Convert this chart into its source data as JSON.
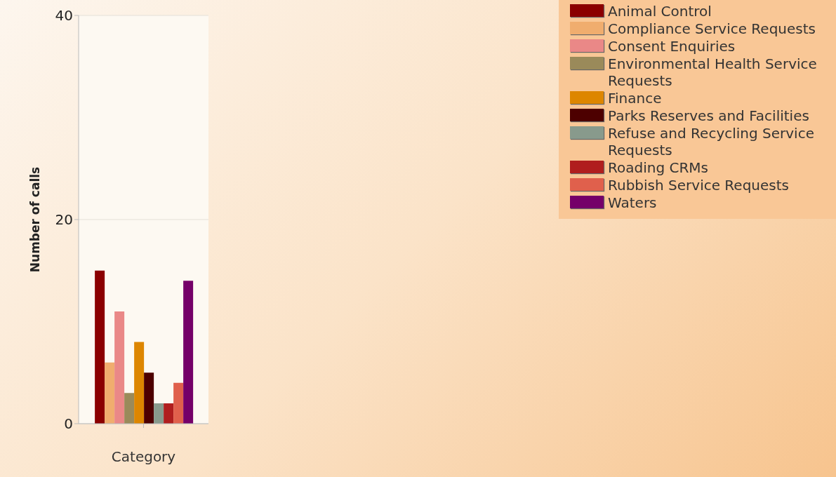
{
  "chart_data": {
    "type": "bar",
    "xlabel": "Category",
    "ylabel": "Number of calls",
    "categories": [
      null
    ],
    "series": [
      {
        "name": "Animal Control",
        "color": "#8b0000",
        "values": [
          15
        ]
      },
      {
        "name": "Compliance Service Requests",
        "color": "#f0ad6e",
        "values": [
          6
        ]
      },
      {
        "name": "Consent Enquiries",
        "color": "#ea8887",
        "values": [
          11
        ]
      },
      {
        "name": "Environmental Health Service Requests",
        "color": "#9a8a5a",
        "values": [
          3
        ]
      },
      {
        "name": "Finance",
        "color": "#dd8600",
        "values": [
          8
        ]
      },
      {
        "name": "Parks Reserves and Facilities",
        "color": "#4d0000",
        "values": [
          5
        ]
      },
      {
        "name": "Refuse and Recycling Service Requests",
        "color": "#889a8c",
        "values": [
          2
        ]
      },
      {
        "name": "Roading CRMs",
        "color": "#b01e1e",
        "values": [
          2
        ]
      },
      {
        "name": "Rubbish Service Requests",
        "color": "#e0604c",
        "values": [
          4
        ]
      },
      {
        "name": "Waters",
        "color": "#750069",
        "values": [
          14
        ]
      }
    ],
    "ylim": [
      0,
      40
    ],
    "yticks": [
      0,
      20,
      40
    ],
    "grid": "y",
    "legend": "top right"
  }
}
